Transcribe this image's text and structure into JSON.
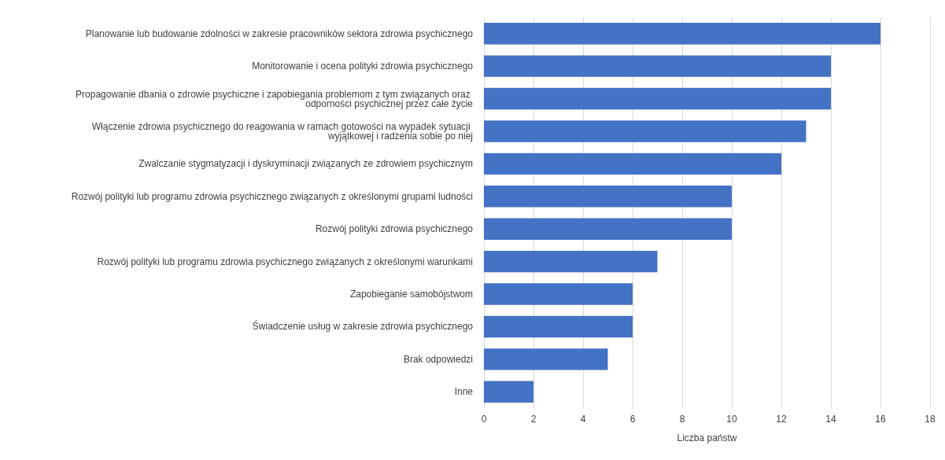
{
  "chart_data": {
    "type": "bar",
    "orientation": "horizontal",
    "xlabel": "Liczba państw",
    "categories": [
      "Planowanie lub budowanie zdolności w zakresie pracowników sektora zdrowia psychicznego",
      "Monitorowanie i ocena polityki zdrowia psychicznego",
      "Propagowanie dbania o zdrowie psychiczne i zapobiegania problemom z tym związanych oraz odporności psychicznej przez całe życie",
      "Włączenie zdrowia psychicznego do reagowania w ramach gotowości na wypadek sytuacji wyjątkowej i radzenia sobie po niej",
      "Zwalczanie stygmatyzacji i dyskryminacji związanych ze zdrowiem psychicznym",
      "Rozwój polityki lub programu zdrowia psychicznego związanych z określonymi grupami ludności",
      "Rozwój polityki zdrowia psychicznego",
      "Rozwój polityki lub programu zdrowia psychicznego związanych z określonymi warunkami",
      "Zapobieganie samobójstwom",
      "Świadczenie usług w zakresie zdrowia psychicznego",
      "Brak odpowiedzi",
      "Inne"
    ],
    "values": [
      16,
      14,
      14,
      13,
      12,
      10,
      10,
      7,
      6,
      6,
      5,
      2
    ],
    "color": "#4472c4",
    "xlim": [
      0,
      18
    ],
    "xticks": [
      0,
      2,
      4,
      6,
      8,
      10,
      12,
      14,
      16,
      18
    ],
    "grid": "x"
  }
}
